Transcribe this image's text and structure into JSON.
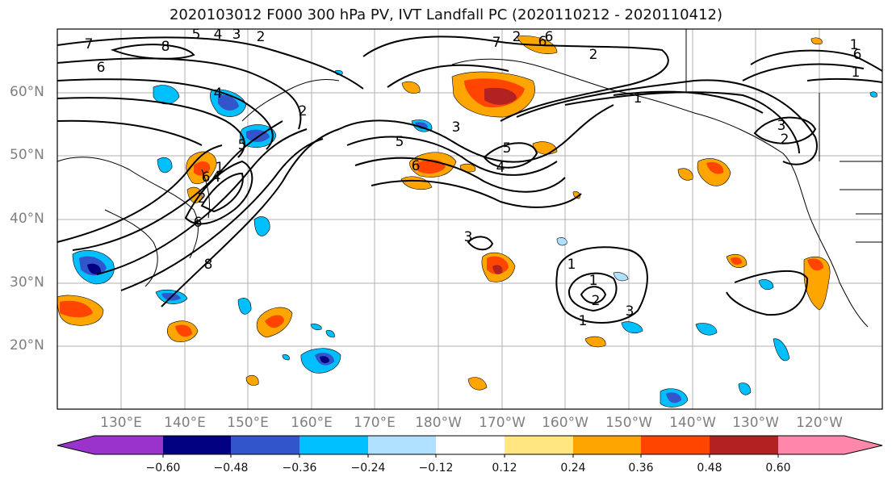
{
  "title": "2020103012 F000 300 hPa PV, IVT Landfall PC (2020110212 - 2020110412)",
  "lat_labels": [
    "60°N",
    "50°N",
    "40°N",
    "30°N",
    "20°N"
  ],
  "lon_labels": [
    "130°E",
    "140°E",
    "150°E",
    "160°E",
    "170°E",
    "180°W",
    "170°W",
    "160°W",
    "150°W",
    "140°W",
    "130°W",
    "120°W"
  ],
  "colorbar": {
    "ticks": [
      "−0.60",
      "−0.48",
      "−0.36",
      "−0.24",
      "−0.12",
      "0.12",
      "0.24",
      "0.36",
      "0.48",
      "0.60"
    ],
    "colors": [
      "#9933cc",
      "#000080",
      "#3355cc",
      "#00bfff",
      "#b0e0ff",
      "#ffffff",
      "#ffe680",
      "#ffa500",
      "#ff4500",
      "#b22222",
      "#ff88aa"
    ]
  },
  "contour_labels": [
    "7",
    "8",
    "5",
    "4",
    "3",
    "2",
    "6",
    "2",
    "1",
    "6",
    "2",
    "4",
    "5",
    "4",
    "6",
    "8",
    "7",
    "2",
    "6",
    "1",
    "2",
    "3",
    "4",
    "5",
    "6",
    "5",
    "6",
    "3",
    "6",
    "1",
    "1",
    "2",
    "3",
    "1",
    "1",
    "2",
    "3",
    "1"
  ]
}
